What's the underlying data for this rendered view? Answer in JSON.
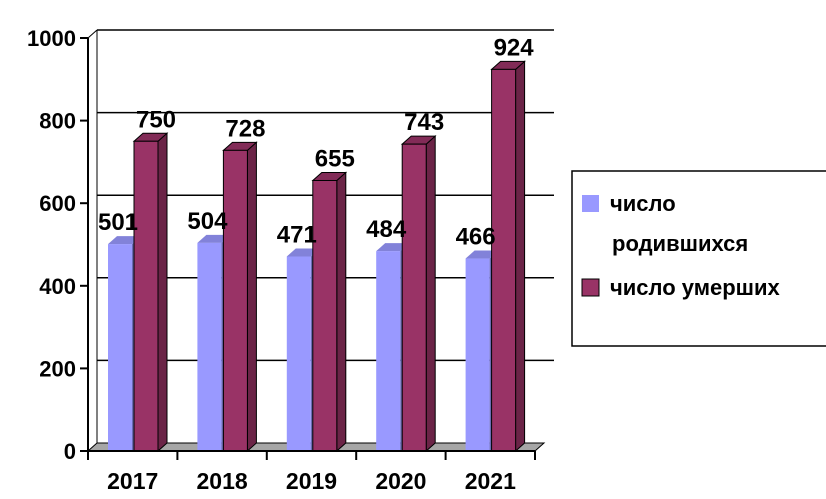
{
  "chart_data": {
    "type": "bar",
    "categories": [
      "2017",
      "2018",
      "2019",
      "2020",
      "2021"
    ],
    "series": [
      {
        "name": "число родившихся",
        "values": [
          501,
          504,
          471,
          484,
          466
        ],
        "color": "#9999ff"
      },
      {
        "name": "число умерших",
        "values": [
          750,
          728,
          655,
          743,
          924
        ],
        "color": "#993366"
      }
    ],
    "yticks": [
      "0",
      "200",
      "400",
      "600",
      "800",
      "1000"
    ],
    "ylim": [
      0,
      1000
    ],
    "grid": true,
    "legend_position": "right",
    "three_d": true
  },
  "legend": {
    "line1a": "число",
    "line1b": "родившихся",
    "line2": "число умерших"
  }
}
